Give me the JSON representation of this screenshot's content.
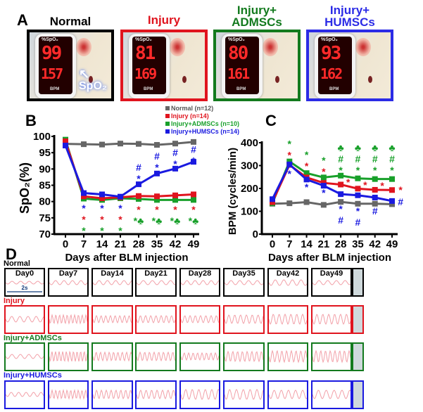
{
  "panel_labels": {
    "a": "A",
    "b": "B",
    "c": "C",
    "d": "D"
  },
  "panel_a": {
    "spo2_label": "%SpO₂",
    "bpm_label": "BPM",
    "arrow_label": "SpO₂",
    "photos": [
      {
        "title": "Normal",
        "color": "#000000",
        "spo2": "99",
        "bpm": "157"
      },
      {
        "title": "Injury",
        "color": "#e0141e",
        "spo2": "81",
        "bpm": "169"
      },
      {
        "title": "Injury+ ADMSCs",
        "color": "#137a1e",
        "spo2": "80",
        "bpm": "161"
      },
      {
        "title": "Injury+ HUMSCs",
        "color": "#2b2be6",
        "spo2": "93",
        "bpm": "162"
      }
    ]
  },
  "legend": [
    {
      "label": "Normal (n=12)",
      "color": "#666666"
    },
    {
      "label": "Injury (n=14)",
      "color": "#e0141e"
    },
    {
      "label": "Injury+ADMSCs (n=10)",
      "color": "#18a02a"
    },
    {
      "label": "Injury+HUMSCs (n=14)",
      "color": "#1a1ae0"
    }
  ],
  "chart_data": [
    {
      "type": "line",
      "panel": "B",
      "xlabel": "Days after BLM injection",
      "ylabel": "SpO₂(%)",
      "x": [
        0,
        7,
        14,
        21,
        28,
        35,
        42,
        49
      ],
      "xtick_labels": [
        "0",
        "7",
        "14",
        "21",
        "28",
        "35",
        "42",
        "49"
      ],
      "ylim": [
        70,
        100
      ],
      "yticks": [
        "70",
        "75",
        "80",
        "85",
        "90",
        "95",
        "100"
      ],
      "series": [
        {
          "name": "Normal (n=12)",
          "color": "#666666",
          "values": [
            97.7,
            97.6,
            97.5,
            97.8,
            97.7,
            97.4,
            97.8,
            98.3
          ]
        },
        {
          "name": "Injury+ADMSCs (n=10)",
          "color": "#18a02a",
          "values": [
            99.0,
            80.9,
            80.5,
            81.0,
            80.8,
            80.5,
            80.5,
            80.5
          ]
        },
        {
          "name": "Injury (n=14)",
          "color": "#e0141e",
          "values": [
            98.5,
            81.6,
            81.0,
            81.3,
            81.7,
            81.6,
            81.9,
            82.2
          ]
        },
        {
          "name": "Injury+HUMSCs (n=14)",
          "color": "#1a1ae0",
          "values": [
            97.2,
            82.6,
            82.2,
            81.5,
            85.3,
            88.6,
            90.1,
            92.2
          ]
        }
      ],
      "annotations": [
        {
          "x": 7,
          "y": 78,
          "text": "*",
          "color": "#1a1ae0"
        },
        {
          "x": 7,
          "y": 75.2,
          "text": "*",
          "color": "#e0141e"
        },
        {
          "x": 7,
          "y": 72.2,
          "text": "*",
          "color": "#18a02a"
        },
        {
          "x": 14,
          "y": 78,
          "text": "*",
          "color": "#1a1ae0"
        },
        {
          "x": 14,
          "y": 75.2,
          "text": "*",
          "color": "#e0141e"
        },
        {
          "x": 14,
          "y": 72.2,
          "text": "*",
          "color": "#18a02a"
        },
        {
          "x": 21,
          "y": 78,
          "text": "*",
          "color": "#1a1ae0"
        },
        {
          "x": 21,
          "y": 75.2,
          "text": "*",
          "color": "#e0141e"
        },
        {
          "x": 21,
          "y": 72.2,
          "text": "*",
          "color": "#18a02a"
        },
        {
          "x": 28,
          "y": 77.6,
          "text": "*",
          "color": "#e0141e"
        },
        {
          "x": 28,
          "y": 74.7,
          "text": "*♣",
          "color": "#18a02a"
        },
        {
          "x": 35,
          "y": 77.6,
          "text": "*",
          "color": "#e0141e"
        },
        {
          "x": 35,
          "y": 74.7,
          "text": "*♣",
          "color": "#18a02a"
        },
        {
          "x": 42,
          "y": 77.6,
          "text": "*",
          "color": "#e0141e"
        },
        {
          "x": 42,
          "y": 74.7,
          "text": "*♣",
          "color": "#18a02a"
        },
        {
          "x": 49,
          "y": 77.6,
          "text": "*",
          "color": "#e0141e"
        },
        {
          "x": 49,
          "y": 74.7,
          "text": "*♣",
          "color": "#18a02a"
        },
        {
          "x": 28,
          "y": 90.5,
          "text": "#",
          "color": "#1a1ae0"
        },
        {
          "x": 28,
          "y": 87.5,
          "text": "*",
          "color": "#1a1ae0"
        },
        {
          "x": 35,
          "y": 94,
          "text": "#",
          "color": "#1a1ae0"
        },
        {
          "x": 35,
          "y": 91,
          "text": "*",
          "color": "#1a1ae0"
        },
        {
          "x": 42,
          "y": 95,
          "text": "#",
          "color": "#1a1ae0"
        },
        {
          "x": 42,
          "y": 92.4,
          "text": "*",
          "color": "#1a1ae0"
        },
        {
          "x": 49,
          "y": 96,
          "text": "#",
          "color": "#1a1ae0"
        },
        {
          "x": 49,
          "y": 93.7,
          "text": "*",
          "color": "#1a1ae0"
        }
      ]
    },
    {
      "type": "line",
      "panel": "C",
      "xlabel": "Days after BLM injection",
      "ylabel": "BPM (cycles/min)",
      "x": [
        0,
        7,
        14,
        21,
        28,
        35,
        42,
        49
      ],
      "xtick_labels": [
        "0",
        "7",
        "14",
        "21",
        "28",
        "35",
        "42",
        "49"
      ],
      "ylim": [
        0,
        400
      ],
      "yticks": [
        "0",
        "100",
        "200",
        "300",
        "400"
      ],
      "series": [
        {
          "name": "Normal (n=12)",
          "color": "#666666",
          "values": [
            133,
            135,
            140,
            128,
            141,
            133,
            133,
            131
          ]
        },
        {
          "name": "Injury+ADMSCs (n=10)",
          "color": "#18a02a",
          "values": [
            135,
            318,
            267,
            248,
            256,
            244,
            241,
            241
          ]
        },
        {
          "name": "Injury (n=14)",
          "color": "#e0141e",
          "values": [
            140,
            303,
            248,
            224,
            217,
            199,
            194,
            193
          ]
        },
        {
          "name": "Injury+HUMSCs (n=14)",
          "color": "#1a1ae0",
          "values": [
            153,
            305,
            239,
            212,
            175,
            170,
            160,
            145
          ]
        }
      ],
      "annotations": [
        {
          "x": 7,
          "y": 395,
          "text": "*",
          "color": "#18a02a"
        },
        {
          "x": 7,
          "y": 357,
          "text": "*",
          "color": "#e0141e"
        },
        {
          "x": 7,
          "y": 265,
          "text": "*",
          "color": "#1a1ae0"
        },
        {
          "x": 14,
          "y": 348,
          "text": "*",
          "color": "#18a02a"
        },
        {
          "x": 14,
          "y": 311,
          "text": "*",
          "color": "#e0141e"
        },
        {
          "x": 14,
          "y": 206,
          "text": "*",
          "color": "#1a1ae0"
        },
        {
          "x": 21,
          "y": 323,
          "text": "*",
          "color": "#18a02a"
        },
        {
          "x": 21,
          "y": 289,
          "text": "*",
          "color": "#e0141e"
        },
        {
          "x": 21,
          "y": 181,
          "text": "*",
          "color": "#1a1ae0"
        },
        {
          "x": 28,
          "y": 378,
          "text": "♣",
          "color": "#18a02a"
        },
        {
          "x": 28,
          "y": 338,
          "text": "#",
          "color": "#18a02a"
        },
        {
          "x": 28,
          "y": 295,
          "text": "*",
          "color": "#18a02a"
        },
        {
          "x": 35,
          "y": 378,
          "text": "♣",
          "color": "#18a02a"
        },
        {
          "x": 35,
          "y": 338,
          "text": "#",
          "color": "#18a02a"
        },
        {
          "x": 35,
          "y": 295,
          "text": "*",
          "color": "#18a02a"
        },
        {
          "x": 42,
          "y": 378,
          "text": "♣",
          "color": "#18a02a"
        },
        {
          "x": 42,
          "y": 338,
          "text": "#",
          "color": "#18a02a"
        },
        {
          "x": 42,
          "y": 295,
          "text": "*",
          "color": "#18a02a"
        },
        {
          "x": 49,
          "y": 378,
          "text": "♣",
          "color": "#18a02a"
        },
        {
          "x": 49,
          "y": 338,
          "text": "#",
          "color": "#18a02a"
        },
        {
          "x": 49,
          "y": 295,
          "text": "*",
          "color": "#18a02a"
        },
        {
          "x": 31,
          "y": 228,
          "text": "*",
          "color": "#e0141e"
        },
        {
          "x": 38,
          "y": 215,
          "text": "*",
          "color": "#e0141e"
        },
        {
          "x": 45,
          "y": 212,
          "text": "*",
          "color": "#e0141e"
        },
        {
          "x": 52.5,
          "y": 194,
          "text": "*",
          "color": "#e0141e"
        },
        {
          "x": 28,
          "y": 111,
          "text": "*",
          "color": "#1a1ae0"
        },
        {
          "x": 28,
          "y": 71,
          "text": "#",
          "color": "#1a1ae0"
        },
        {
          "x": 35,
          "y": 102,
          "text": "*",
          "color": "#1a1ae0"
        },
        {
          "x": 35,
          "y": 65,
          "text": "#",
          "color": "#1a1ae0"
        },
        {
          "x": 42,
          "y": 102,
          "text": "#",
          "color": "#1a1ae0"
        },
        {
          "x": 52.5,
          "y": 142,
          "text": "#",
          "color": "#1a1ae0"
        }
      ]
    }
  ],
  "panel_d": {
    "days": [
      "Day0",
      "Day7",
      "Day14",
      "Day21",
      "Day28",
      "Day35",
      "Day42",
      "Day49"
    ],
    "scale_bar": "2s",
    "rows": [
      {
        "label": "Normal",
        "color": "#000000"
      },
      {
        "label": "Injury",
        "color": "#e0141e"
      },
      {
        "label": "Injury+ADMSCs",
        "color": "#137a1e"
      },
      {
        "label": "Injury+HUMSCs",
        "color": "#1a1ae0"
      }
    ],
    "trace_color": "#f2a0a8"
  }
}
